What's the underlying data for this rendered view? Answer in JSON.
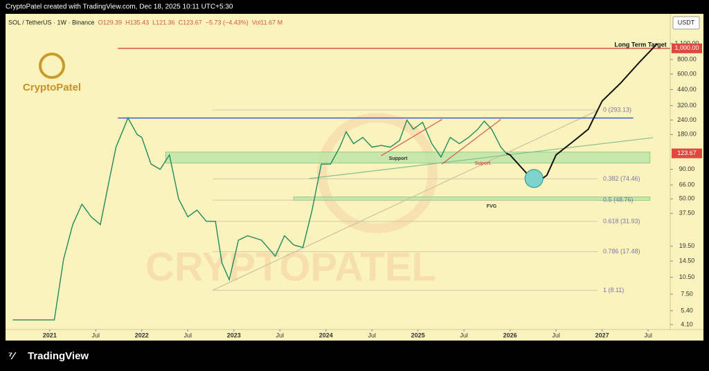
{
  "header": {
    "caption": "CryptoPatel created with TradingView.com, Dec 18, 2025 10:11 UTC+5:30",
    "symbol": "SOL / TetherUS · 1W · Binance",
    "ohlc": [
      "O129.39",
      "H135.43",
      "L121.36",
      "C123.67"
    ],
    "change": "−5.73 (−4.43%)",
    "volume": "Vol11.67 M",
    "currency": "USDT"
  },
  "logo": "CryptoPatel",
  "watermark": "CRYPTOPATEL",
  "footer": "TradingView",
  "chart_data": {
    "type": "line",
    "log_scale": true,
    "xlim": [
      2020.52,
      2027.74
    ],
    "ylim": [
      3.77,
      1933
    ],
    "xticks": [
      {
        "value": 2021,
        "label": "2021"
      },
      {
        "value": 2021.5,
        "label": "Jul"
      },
      {
        "value": 2022,
        "label": "2022"
      },
      {
        "value": 2022.5,
        "label": "Jul"
      },
      {
        "value": 2023,
        "label": "2023"
      },
      {
        "value": 2023.5,
        "label": "Jul"
      },
      {
        "value": 2024,
        "label": "2024"
      },
      {
        "value": 2024.5,
        "label": "Jul"
      },
      {
        "value": 2025,
        "label": "2025"
      },
      {
        "value": 2025.5,
        "label": "Jul"
      },
      {
        "value": 2026,
        "label": "2026"
      },
      {
        "value": 2026.5,
        "label": "Jul"
      },
      {
        "value": 2027,
        "label": "2027"
      },
      {
        "value": 2027.5,
        "label": "Jul"
      }
    ],
    "yticks": [
      {
        "value": 1100,
        "label": "1,100.00"
      },
      {
        "value": 800,
        "label": "800.00"
      },
      {
        "value": 600,
        "label": "600.00"
      },
      {
        "value": 440,
        "label": "440.00"
      },
      {
        "value": 320,
        "label": "320.00"
      },
      {
        "value": 240,
        "label": "240.00"
      },
      {
        "value": 180,
        "label": "180.00"
      },
      {
        "value": 90,
        "label": "90.00"
      },
      {
        "value": 66,
        "label": "66.00"
      },
      {
        "value": 50,
        "label": "50.00"
      },
      {
        "value": 37.5,
        "label": "37.50"
      },
      {
        "value": 19.5,
        "label": "19.50"
      },
      {
        "value": 14.5,
        "label": "14.50"
      },
      {
        "value": 10.5,
        "label": "10.50"
      },
      {
        "value": 7.5,
        "label": "7.50"
      },
      {
        "value": 5.4,
        "label": "5.40"
      },
      {
        "value": 4.1,
        "label": "4.10"
      }
    ],
    "series": [
      {
        "name": "SOL / TetherUS",
        "color": "#1f8a5c",
        "x": [
          2020.6,
          2021.05,
          2021.15,
          2021.25,
          2021.35,
          2021.45,
          2021.55,
          2021.65,
          2021.72,
          2021.8,
          2021.85,
          2021.95,
          2022.0,
          2022.1,
          2022.2,
          2022.3,
          2022.4,
          2022.5,
          2022.6,
          2022.7,
          2022.8,
          2022.87,
          2022.95,
          2023.05,
          2023.15,
          2023.3,
          2023.45,
          2023.55,
          2023.65,
          2023.75,
          2023.85,
          2023.95,
          2024.05,
          2024.15,
          2024.22,
          2024.3,
          2024.4,
          2024.5,
          2024.6,
          2024.7,
          2024.8,
          2024.88,
          2024.95,
          2025.05,
          2025.15,
          2025.25,
          2025.35,
          2025.45,
          2025.55,
          2025.65,
          2025.72,
          2025.8,
          2025.9,
          2025.96
        ],
        "values": [
          4.5,
          4.5,
          15,
          30,
          45,
          35,
          30,
          75,
          140,
          200,
          250,
          180,
          170,
          100,
          90,
          120,
          50,
          35,
          40,
          32,
          32,
          14,
          10,
          22,
          24,
          22,
          16,
          24,
          20,
          19,
          40,
          100,
          100,
          140,
          190,
          150,
          170,
          140,
          145,
          140,
          160,
          240,
          200,
          230,
          150,
          115,
          170,
          150,
          170,
          200,
          235,
          200,
          140,
          123.67
        ]
      },
      {
        "name": "Projection",
        "color": "#111111",
        "x": [
          2025.96,
          2026.0,
          2026.2,
          2026.3,
          2026.4,
          2026.5,
          2026.7,
          2026.85,
          2027.0,
          2027.2,
          2027.4,
          2027.6
        ],
        "values": [
          123.67,
          120,
          80,
          70,
          80,
          120,
          160,
          200,
          350,
          500,
          750,
          1100
        ]
      }
    ],
    "price_tags": [
      {
        "value": 123.67,
        "label": "123.67"
      },
      {
        "value": 1000,
        "label": "1,000.00"
      }
    ],
    "levels": [
      {
        "value": 1000,
        "x": [
          2021.74,
          2027.74
        ],
        "color": "#d9534f"
      },
      {
        "value": 250,
        "x": [
          2021.74,
          2027.34
        ],
        "color": "#3b5bdb"
      }
    ],
    "zones": [
      {
        "x": [
          2022.26,
          2027.52
        ],
        "y": [
          102,
          127
        ]
      },
      {
        "x": [
          2023.65,
          2027.52
        ],
        "y": [
          48.5,
          52
        ]
      }
    ],
    "fib": {
      "x": [
        2022.77,
        2026.95
      ],
      "levels": [
        {
          "value": 293.13,
          "label": "0 (293.13)"
        },
        {
          "value": 74.46,
          "label": "0.382 (74.46)"
        },
        {
          "value": 48.76,
          "label": "0.5 (48.76)"
        },
        {
          "value": 31.93,
          "label": "0.618 (31.93)"
        },
        {
          "value": 17.48,
          "label": "0.786 (17.48)"
        },
        {
          "value": 8.11,
          "label": "1 (8.11)"
        }
      ]
    },
    "trendlines": [
      {
        "x": [
          2022.77,
          2026.95
        ],
        "values": [
          8.11,
          290
        ],
        "color": "#c9c2a0"
      },
      {
        "x": [
          2023.82,
          2027.55
        ],
        "values": [
          75,
          169
        ],
        "color": "#7fbf8f"
      },
      {
        "x": [
          2024.6,
          2025.26
        ],
        "values": [
          118,
          243
        ],
        "color": "#d9534f"
      },
      {
        "x": [
          2025.26,
          2025.9
        ],
        "values": [
          100,
          243
        ],
        "color": "#d9534f"
      }
    ],
    "target_marker": {
      "x": 2026.26,
      "value": 75
    },
    "annotations": [
      "Long Term Target",
      "Support",
      "Suport",
      "FVG"
    ]
  }
}
